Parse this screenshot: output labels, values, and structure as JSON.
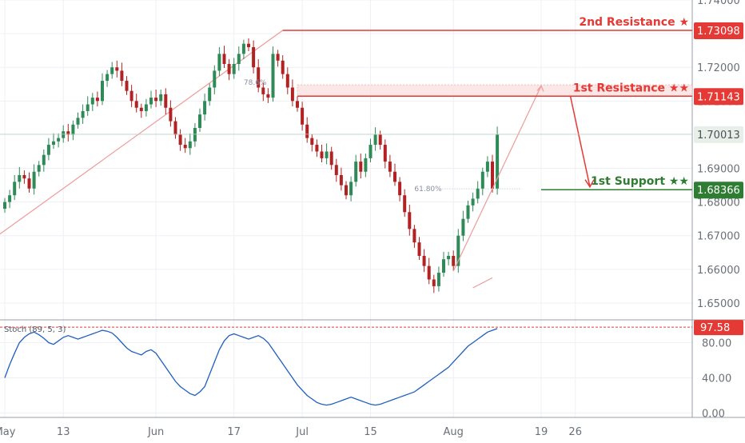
{
  "colors": {
    "background": "#ffffff",
    "grid": "#eef0f5",
    "axis_line": "#9aa0a8",
    "axis_text": "#6a6f78",
    "candle_up": "#2e8b57",
    "candle_down": "#b22222",
    "resistance": "#e53935",
    "support": "#2e7d32",
    "stoch_line": "#1f5fbf",
    "stoch_level": "#e53935",
    "trend": "#ef9a9a",
    "fib_text": "#8a8fa3"
  },
  "chart_data": [
    {
      "type": "candlestick",
      "price_axis": {
        "ylim": [
          1.645,
          1.74
        ],
        "ticks": [
          "1.74000",
          "1.73000",
          "1.72000",
          "1.71000",
          "1.70000",
          "1.69000",
          "1.68000",
          "1.67000",
          "1.66000",
          "1.65000"
        ]
      },
      "x_axis": {
        "ticks": [
          {
            "label": "May",
            "day": 0
          },
          {
            "label": "13",
            "day": 12
          },
          {
            "label": "Jun",
            "day": 31
          },
          {
            "label": "17",
            "day": 47
          },
          {
            "label": "Jul",
            "day": 61
          },
          {
            "label": "15",
            "day": 75
          },
          {
            "label": "Aug",
            "day": 92
          },
          {
            "label": "19",
            "day": 110
          },
          {
            "label": "26",
            "day": 117
          }
        ]
      },
      "closes": [
        1.68,
        1.682,
        1.686,
        1.688,
        1.687,
        1.684,
        1.689,
        1.691,
        1.694,
        1.697,
        1.698,
        1.699,
        1.701,
        1.7,
        1.703,
        1.705,
        1.707,
        1.709,
        1.711,
        1.71,
        1.716,
        1.718,
        1.72,
        1.719,
        1.716,
        1.713,
        1.71,
        1.708,
        1.707,
        1.709,
        1.711,
        1.71,
        1.712,
        1.708,
        1.704,
        1.7,
        1.697,
        1.696,
        1.698,
        1.702,
        1.706,
        1.71,
        1.714,
        1.719,
        1.724,
        1.721,
        1.718,
        1.721,
        1.724,
        1.727,
        1.726,
        1.72,
        1.714,
        1.712,
        1.711,
        1.724,
        1.722,
        1.718,
        1.714,
        1.71,
        1.708,
        1.703,
        1.699,
        1.697,
        1.695,
        1.693,
        1.695,
        1.691,
        1.688,
        1.685,
        1.682,
        1.686,
        1.692,
        1.689,
        1.693,
        1.697,
        1.7,
        1.697,
        1.692,
        1.689,
        1.686,
        1.682,
        1.677,
        1.672,
        1.668,
        1.664,
        1.661,
        1.657,
        1.655,
        1.659,
        1.663,
        1.664,
        1.661,
        1.67,
        1.675,
        1.679,
        1.681,
        1.684,
        1.689,
        1.692,
        1.684,
        1.7
      ],
      "series": [
        {
          "name": "",
          "values": []
        }
      ],
      "levels": [
        {
          "label": "2nd Resistance ★",
          "price": 1.73098,
          "badge": "1.73098",
          "kind": "resistance"
        },
        {
          "label": "1st Resistance ★★",
          "price": 1.71143,
          "badge": "1.71143",
          "kind": "resistance"
        },
        {
          "label": "1st Support ★★",
          "price": 1.68366,
          "badge": "1.68366",
          "kind": "support"
        }
      ],
      "current_price": {
        "value": 1.70013,
        "badge": "1.70013"
      },
      "fib_labels": [
        {
          "text": "78.6%",
          "day": 49,
          "price": 1.7148
        },
        {
          "text": "61.80%",
          "day": 84,
          "price": 1.6832
        }
      ]
    },
    {
      "type": "line",
      "title": "Stoch (89, 5, 3)",
      "ylim": [
        -5,
        105
      ],
      "ticks": [
        "80.00",
        "40.00",
        "0.00"
      ],
      "level": {
        "value": 97.58,
        "badge": "97.58"
      },
      "values": [
        40,
        55,
        68,
        80,
        86,
        90,
        92,
        89,
        85,
        80,
        78,
        82,
        86,
        88,
        86,
        84,
        86,
        88,
        90,
        92,
        94,
        93,
        91,
        86,
        80,
        74,
        70,
        68,
        66,
        70,
        72,
        68,
        60,
        52,
        44,
        36,
        30,
        26,
        22,
        20,
        24,
        30,
        44,
        58,
        72,
        82,
        88,
        90,
        88,
        86,
        84,
        86,
        88,
        85,
        80,
        72,
        64,
        56,
        48,
        40,
        32,
        26,
        20,
        16,
        12,
        10,
        9,
        10,
        12,
        14,
        16,
        18,
        16,
        14,
        12,
        10,
        9,
        10,
        12,
        14,
        16,
        18,
        20,
        22,
        24,
        28,
        32,
        36,
        40,
        44,
        48,
        52,
        58,
        64,
        70,
        76,
        80,
        84,
        88,
        92,
        94,
        96
      ]
    }
  ]
}
